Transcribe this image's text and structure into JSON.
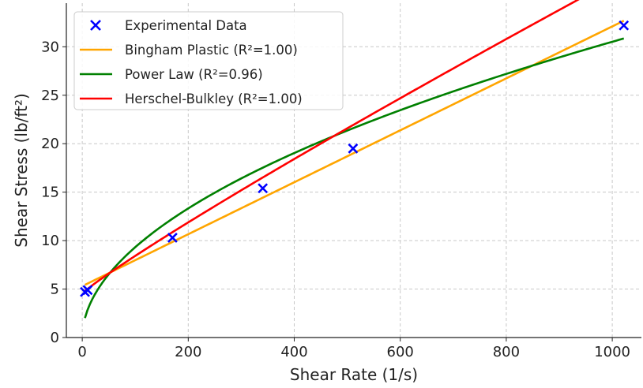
{
  "chart_data": {
    "type": "line",
    "title": "",
    "xlabel": "Shear Rate (1/s)",
    "ylabel": "Shear Stress (lb/ft²)",
    "xlim": [
      -30,
      1055
    ],
    "ylim": [
      0,
      34.5
    ],
    "xticks": [
      0,
      200,
      400,
      600,
      800,
      1000
    ],
    "yticks": [
      0,
      5,
      10,
      15,
      20,
      25,
      30
    ],
    "grid": true,
    "legend_position": "top-left",
    "scatter": {
      "name": "Experimental Data",
      "color": "#0000ff",
      "marker": "x",
      "x": [
        5.11,
        10.22,
        170.3,
        340.6,
        510.9,
        1021.8
      ],
      "y": [
        4.7,
        4.9,
        10.3,
        15.4,
        19.5,
        32.2
      ]
    },
    "series": [
      {
        "name": "Bingham Plastic (R²=1.00)",
        "color": "#ffa500",
        "model": "bingham",
        "params": {
          "tau0": 5.3,
          "mu": 0.0268
        }
      },
      {
        "name": "Power Law (R²=0.96)",
        "color": "#008000",
        "model": "power",
        "params": {
          "K": 0.87,
          "n": 0.515
        }
      },
      {
        "name": "Herschel-Bulkley (R²=1.00)",
        "color": "#ff0000",
        "model": "herschel_bulkley",
        "params": {
          "tau0": 4.55,
          "K": 0.056,
          "n": 0.92
        }
      }
    ],
    "curve_x_range": [
      5.11,
      1021.8
    ]
  }
}
